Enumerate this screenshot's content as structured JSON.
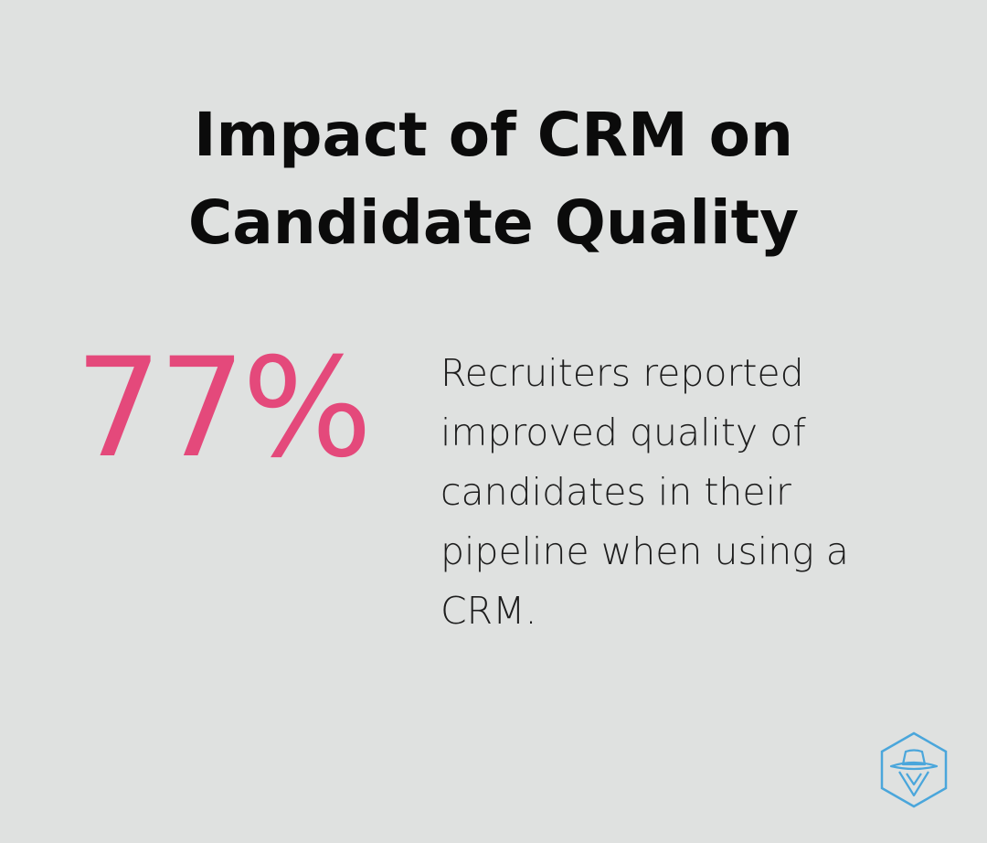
{
  "infographic": {
    "title_line1": "Impact of CRM on",
    "title_line2": "Candidate Quality",
    "stat_value": "77%",
    "stat_description": "Recruiters reported improved quality of candidates in their pipeline when using a CRM."
  },
  "colors": {
    "background": "#dfe1e0",
    "title_text": "#0b0b0b",
    "accent_pink": "#e4497b",
    "body_text": "#1d1d1d",
    "logo_blue": "#4aa6db"
  },
  "logo": {
    "icon": "hexagon-hat-detective-icon"
  }
}
